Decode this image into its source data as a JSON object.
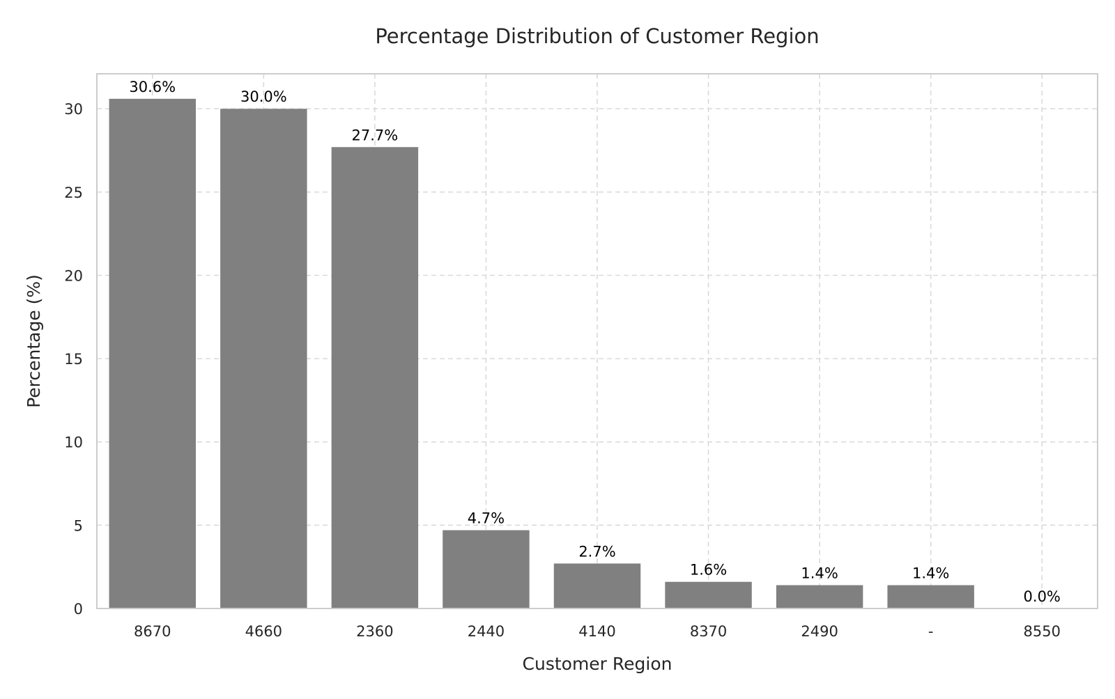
{
  "chart_data": {
    "type": "bar",
    "title": "Percentage Distribution of Customer Region",
    "xlabel": "Customer Region",
    "ylabel": "Percentage (%)",
    "categories": [
      "8670",
      "4660",
      "2360",
      "2440",
      "4140",
      "8370",
      "2490",
      "-",
      "8550"
    ],
    "values": [
      30.6,
      30.0,
      27.7,
      4.7,
      2.7,
      1.6,
      1.4,
      1.4,
      0.0
    ],
    "data_labels": [
      "30.6%",
      "30.0%",
      "27.7%",
      "4.7%",
      "2.7%",
      "1.6%",
      "1.4%",
      "1.4%",
      "0.0%"
    ],
    "yticks": [
      0,
      5,
      10,
      15,
      20,
      25,
      30
    ],
    "ylim": [
      0,
      32.1
    ],
    "grid": true,
    "bar_color": "#808080"
  }
}
